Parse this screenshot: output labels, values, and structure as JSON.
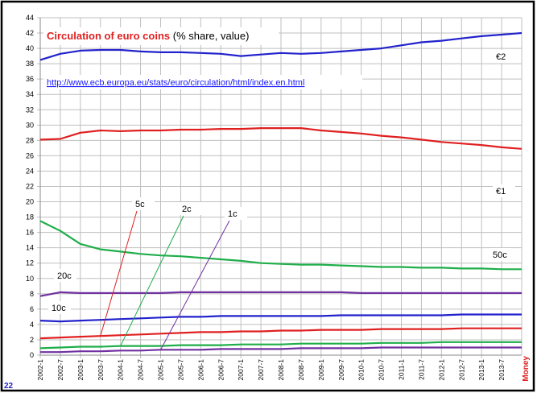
{
  "chart_data": {
    "type": "line",
    "title": "Circulation of euro coins",
    "subtitle": "(% share, value)",
    "source_url": "http://www.ecb.europa.eu/stats/euro/circulation/html/index.en.html",
    "page_number": "22",
    "side_label": "Money",
    "categories": [
      "2002-1",
      "2002-7",
      "2003-1",
      "2003-7",
      "2004-1",
      "2004-7",
      "2005-1",
      "2005-7",
      "2006-1",
      "2006-7",
      "2007-1",
      "2007-7",
      "2008-1",
      "2008-7",
      "2009-1",
      "2009-7",
      "2010-1",
      "2010-7",
      "2011-1",
      "2011-7",
      "2012-1",
      "2012-7",
      "2013-1",
      "2013-7",
      null
    ],
    "ylim": [
      0,
      44
    ],
    "yticks": [
      0,
      2,
      4,
      6,
      8,
      10,
      12,
      14,
      16,
      18,
      20,
      22,
      24,
      26,
      28,
      30,
      32,
      34,
      36,
      38,
      40,
      42,
      44
    ],
    "grid": true,
    "series": [
      {
        "name": "€2",
        "color": "#2222cc",
        "values": [
          38.5,
          39.3,
          39.7,
          39.8,
          39.8,
          39.6,
          39.5,
          39.5,
          39.4,
          39.3,
          39.0,
          39.2,
          39.4,
          39.3,
          39.4,
          39.6,
          39.8,
          40.0,
          40.4,
          40.8,
          41.0,
          41.3,
          41.6,
          41.8,
          42.0
        ]
      },
      {
        "name": "€1",
        "color": "#e02020",
        "values": [
          28.1,
          28.2,
          29.0,
          29.3,
          29.2,
          29.3,
          29.3,
          29.4,
          29.4,
          29.5,
          29.5,
          29.6,
          29.6,
          29.6,
          29.3,
          29.1,
          28.9,
          28.6,
          28.4,
          28.1,
          27.8,
          27.6,
          27.4,
          27.1,
          26.9
        ]
      },
      {
        "name": "50c",
        "color": "#1fae4a",
        "values": [
          17.5,
          16.2,
          14.5,
          13.8,
          13.5,
          13.2,
          13.0,
          12.9,
          12.7,
          12.5,
          12.3,
          12.0,
          11.9,
          11.8,
          11.8,
          11.7,
          11.6,
          11.5,
          11.5,
          11.4,
          11.4,
          11.3,
          11.3,
          11.2,
          11.2
        ]
      },
      {
        "name": "20c",
        "color": "#7030a0",
        "values": [
          7.7,
          8.2,
          8.1,
          8.1,
          8.1,
          8.1,
          8.1,
          8.2,
          8.2,
          8.2,
          8.2,
          8.2,
          8.2,
          8.2,
          8.2,
          8.2,
          8.1,
          8.1,
          8.1,
          8.1,
          8.1,
          8.1,
          8.1,
          8.1,
          8.1
        ]
      },
      {
        "name": "10c",
        "color": "#2222cc",
        "values": [
          4.5,
          4.4,
          4.5,
          4.6,
          4.7,
          4.8,
          4.9,
          5.0,
          5.0,
          5.1,
          5.1,
          5.1,
          5.1,
          5.1,
          5.1,
          5.2,
          5.2,
          5.2,
          5.2,
          5.2,
          5.2,
          5.3,
          5.3,
          5.3,
          5.3
        ]
      },
      {
        "name": "5c",
        "color": "#e02020",
        "values": [
          2.2,
          2.3,
          2.4,
          2.5,
          2.6,
          2.7,
          2.8,
          2.9,
          3.0,
          3.0,
          3.1,
          3.1,
          3.2,
          3.2,
          3.3,
          3.3,
          3.3,
          3.4,
          3.4,
          3.4,
          3.4,
          3.5,
          3.5,
          3.5,
          3.5
        ]
      },
      {
        "name": "2c",
        "color": "#1fae4a",
        "values": [
          0.9,
          1.0,
          1.1,
          1.1,
          1.2,
          1.2,
          1.2,
          1.3,
          1.3,
          1.3,
          1.4,
          1.4,
          1.4,
          1.5,
          1.5,
          1.5,
          1.5,
          1.6,
          1.6,
          1.6,
          1.7,
          1.7,
          1.7,
          1.7,
          1.7
        ]
      },
      {
        "name": "1c",
        "color": "#7030a0",
        "values": [
          0.4,
          0.4,
          0.5,
          0.5,
          0.6,
          0.6,
          0.7,
          0.7,
          0.7,
          0.8,
          0.8,
          0.8,
          0.8,
          0.9,
          0.9,
          0.9,
          0.9,
          1.0,
          1.0,
          1.0,
          1.0,
          1.0,
          1.0,
          1.0,
          1.0
        ]
      }
    ]
  }
}
